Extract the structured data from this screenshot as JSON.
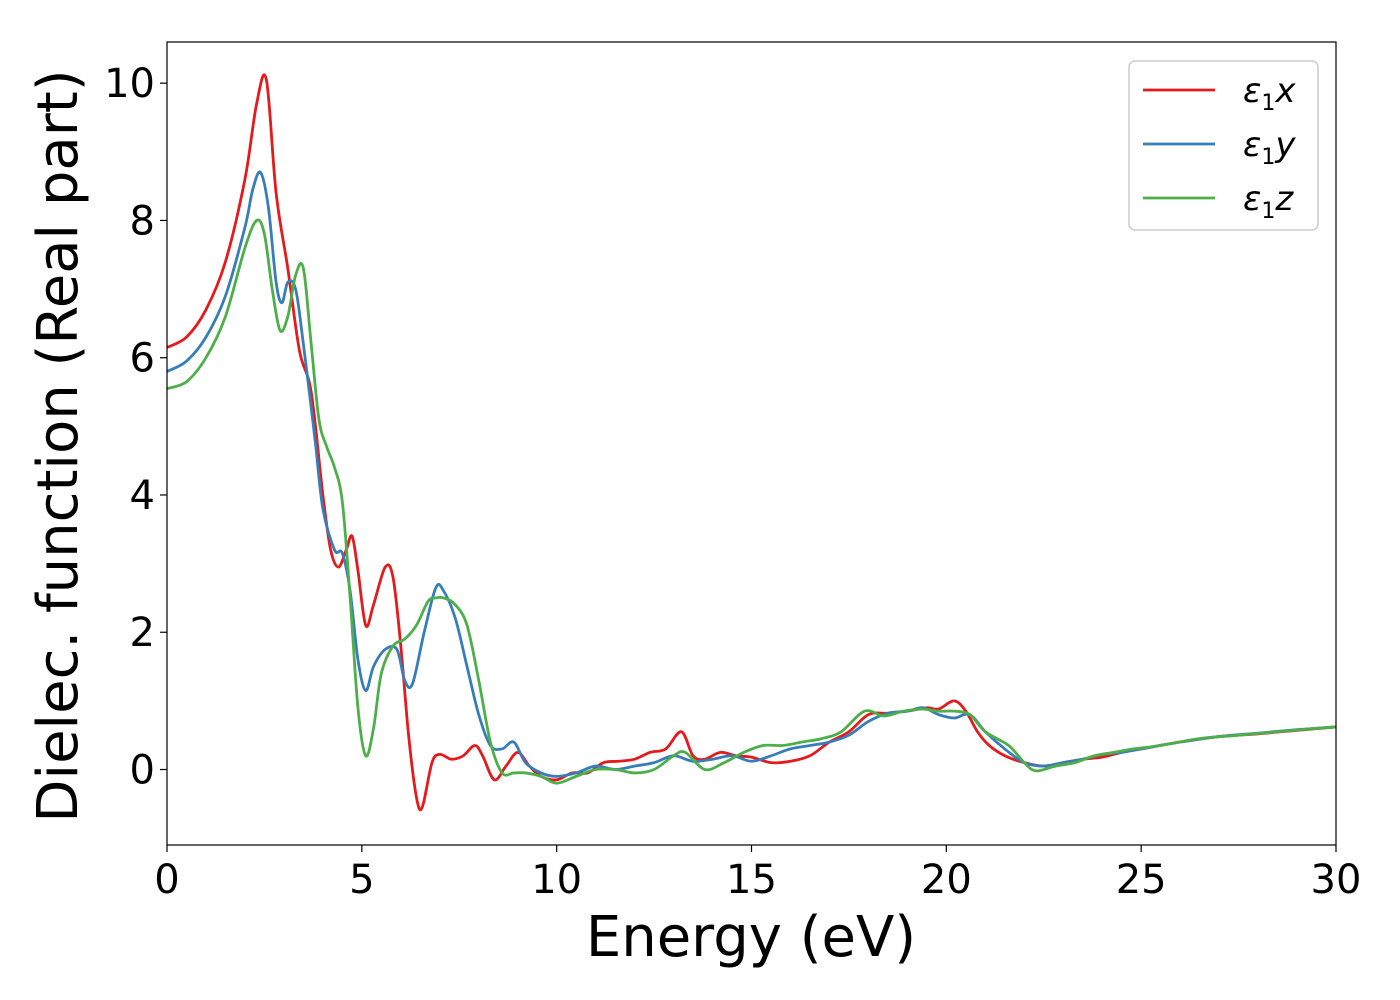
{
  "chart_data": {
    "type": "line",
    "xlabel": "Energy (eV)",
    "ylabel": "Dielec. function (Real part)",
    "xlim": [
      0,
      30
    ],
    "ylim": [
      -1.1,
      10.6
    ],
    "xticks": [
      0,
      5,
      10,
      15,
      20,
      25,
      30
    ],
    "yticks": [
      0,
      2,
      4,
      6,
      8,
      10
    ],
    "grid": false,
    "legend_position": "top-right",
    "series": [
      {
        "name": "ε₁x",
        "legend": {
          "base": "ε",
          "sub": "1",
          "suffix": "x"
        },
        "color": "#e41a1c",
        "x": [
          0,
          0.5,
          1.0,
          1.5,
          2.0,
          2.3,
          2.55,
          2.8,
          3.1,
          3.4,
          3.7,
          4.0,
          4.2,
          4.4,
          4.6,
          4.75,
          4.9,
          5.1,
          5.3,
          5.6,
          5.8,
          6.0,
          6.2,
          6.4,
          6.55,
          6.8,
          7.0,
          7.3,
          7.6,
          7.9,
          8.1,
          8.4,
          8.7,
          9.0,
          9.3,
          9.6,
          10.0,
          10.4,
          10.8,
          11.2,
          11.6,
          12.0,
          12.4,
          12.8,
          13.2,
          13.5,
          13.8,
          14.2,
          14.6,
          15.0,
          15.5,
          16.0,
          16.5,
          17.0,
          17.5,
          18.0,
          18.5,
          19.0,
          19.5,
          19.8,
          20.2,
          20.5,
          20.8,
          21.1,
          21.5,
          22.0,
          22.5,
          23.0,
          23.5,
          24.0,
          24.5,
          25.0,
          26.0,
          27.0,
          28.0,
          29.0,
          30.0
        ],
        "y": [
          6.15,
          6.3,
          6.7,
          7.4,
          8.6,
          9.7,
          10.05,
          8.4,
          7.3,
          6.1,
          5.5,
          4.0,
          3.2,
          2.95,
          3.2,
          3.4,
          2.9,
          2.1,
          2.4,
          2.95,
          2.8,
          1.8,
          0.5,
          -0.4,
          -0.55,
          0.1,
          0.22,
          0.15,
          0.2,
          0.35,
          0.2,
          -0.15,
          0.05,
          0.25,
          0.05,
          -0.1,
          -0.15,
          -0.05,
          -0.05,
          0.1,
          0.12,
          0.15,
          0.25,
          0.3,
          0.55,
          0.2,
          0.15,
          0.25,
          0.2,
          0.18,
          0.1,
          0.12,
          0.2,
          0.4,
          0.55,
          0.8,
          0.82,
          0.85,
          0.9,
          0.88,
          1.0,
          0.85,
          0.55,
          0.35,
          0.2,
          0.1,
          0.05,
          0.1,
          0.15,
          0.18,
          0.25,
          0.3,
          0.4,
          0.48,
          0.52,
          0.57,
          0.62
        ]
      },
      {
        "name": "ε₁y",
        "legend": {
          "base": "ε",
          "sub": "1",
          "suffix": "y"
        },
        "color": "#377eb8",
        "x": [
          0,
          0.5,
          1.0,
          1.5,
          2.0,
          2.2,
          2.4,
          2.6,
          2.8,
          2.95,
          3.1,
          3.3,
          3.5,
          3.8,
          4.0,
          4.3,
          4.5,
          4.7,
          4.9,
          5.1,
          5.3,
          5.6,
          5.9,
          6.1,
          6.3,
          6.6,
          6.9,
          7.1,
          7.4,
          7.7,
          8.0,
          8.3,
          8.6,
          8.9,
          9.2,
          9.6,
          10.0,
          10.5,
          11.0,
          11.5,
          12.0,
          12.5,
          13.0,
          13.5,
          14.0,
          14.5,
          15.0,
          15.5,
          16.0,
          16.5,
          17.0,
          17.5,
          18.0,
          18.5,
          19.0,
          19.4,
          19.8,
          20.2,
          20.6,
          21.0,
          21.5,
          22.0,
          22.5,
          23.0,
          23.5,
          24.0,
          24.5,
          25.0,
          26.0,
          27.0,
          28.0,
          29.0,
          30.0
        ],
        "y": [
          5.8,
          5.95,
          6.3,
          6.9,
          7.9,
          8.45,
          8.7,
          8.2,
          7.1,
          6.8,
          7.1,
          7.0,
          6.2,
          4.8,
          3.8,
          3.2,
          3.15,
          2.6,
          1.6,
          1.15,
          1.5,
          1.75,
          1.75,
          1.3,
          1.25,
          2.0,
          2.65,
          2.6,
          2.2,
          1.5,
          0.8,
          0.35,
          0.3,
          0.4,
          0.1,
          -0.05,
          -0.1,
          -0.05,
          0.05,
          0.0,
          0.05,
          0.1,
          0.2,
          0.12,
          0.15,
          0.2,
          0.12,
          0.2,
          0.3,
          0.35,
          0.4,
          0.5,
          0.7,
          0.82,
          0.85,
          0.9,
          0.8,
          0.75,
          0.8,
          0.55,
          0.3,
          0.1,
          0.05,
          0.1,
          0.15,
          0.22,
          0.25,
          0.3,
          0.4,
          0.48,
          0.53,
          0.58,
          0.62
        ]
      },
      {
        "name": "ε₁z",
        "legend": {
          "base": "ε",
          "sub": "1",
          "suffix": "z"
        },
        "color": "#4daf4a",
        "x": [
          0,
          0.5,
          1.0,
          1.5,
          2.0,
          2.3,
          2.5,
          2.7,
          2.9,
          3.1,
          3.3,
          3.5,
          3.7,
          3.9,
          4.1,
          4.3,
          4.5,
          4.7,
          4.9,
          5.1,
          5.3,
          5.5,
          5.8,
          6.1,
          6.4,
          6.7,
          6.9,
          7.1,
          7.4,
          7.7,
          8.0,
          8.3,
          8.6,
          8.9,
          9.2,
          9.6,
          10.0,
          10.5,
          11.0,
          11.5,
          12.0,
          12.5,
          13.0,
          13.3,
          13.8,
          14.3,
          14.8,
          15.3,
          15.8,
          16.3,
          16.8,
          17.3,
          17.9,
          18.4,
          18.9,
          19.4,
          19.8,
          20.2,
          20.6,
          21.0,
          21.6,
          22.0,
          22.3,
          22.8,
          23.3,
          23.8,
          24.3,
          24.8,
          25.5,
          26.5,
          27.5,
          28.5,
          29.5,
          30.0
        ],
        "y": [
          5.55,
          5.65,
          6.0,
          6.6,
          7.6,
          8.0,
          7.8,
          7.0,
          6.4,
          6.6,
          7.2,
          7.3,
          6.2,
          5.1,
          4.7,
          4.4,
          3.9,
          2.5,
          0.9,
          0.2,
          0.6,
          1.4,
          1.8,
          1.9,
          2.1,
          2.45,
          2.5,
          2.5,
          2.4,
          2.1,
          1.3,
          0.4,
          -0.05,
          -0.05,
          -0.05,
          -0.1,
          -0.2,
          -0.1,
          0.0,
          0.0,
          -0.05,
          0.0,
          0.2,
          0.25,
          0.0,
          0.1,
          0.25,
          0.35,
          0.35,
          0.4,
          0.45,
          0.55,
          0.85,
          0.78,
          0.85,
          0.88,
          0.85,
          0.85,
          0.8,
          0.55,
          0.35,
          0.1,
          -0.02,
          0.05,
          0.1,
          0.2,
          0.25,
          0.3,
          0.35,
          0.45,
          0.5,
          0.55,
          0.6,
          0.62
        ]
      }
    ]
  }
}
